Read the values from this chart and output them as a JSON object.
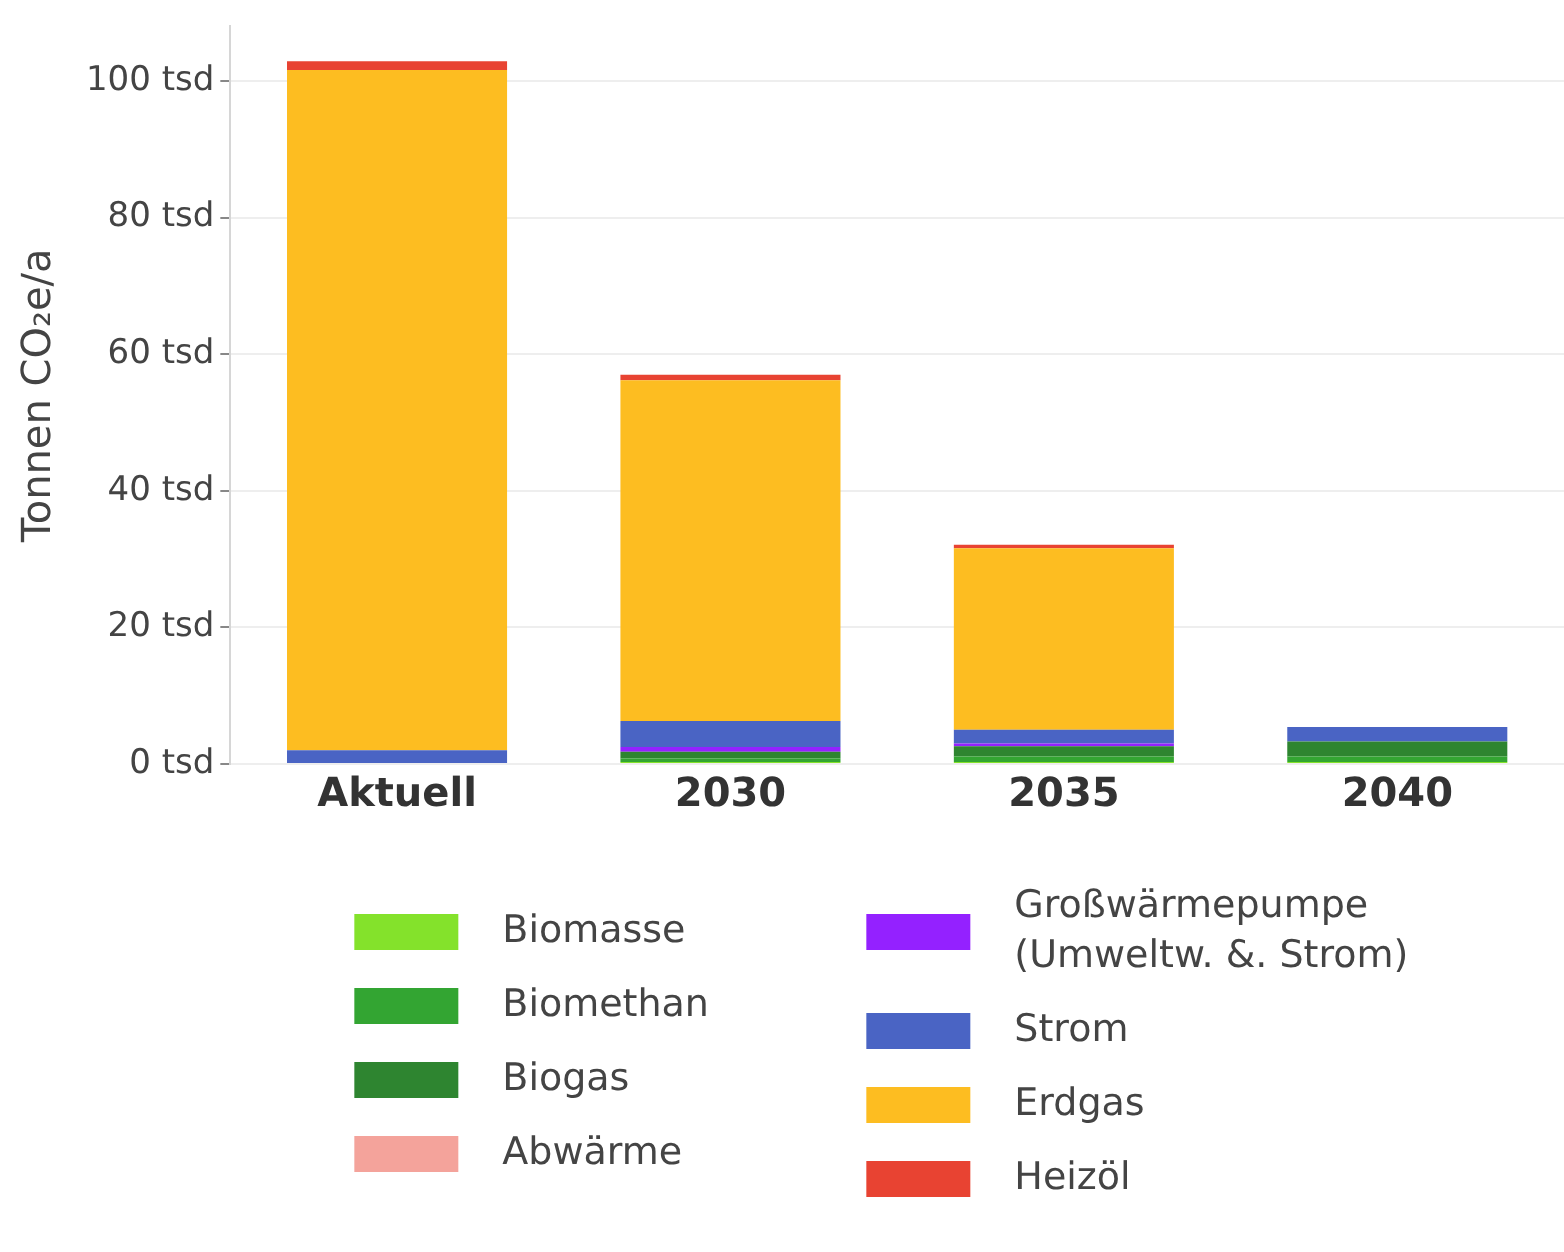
{
  "chart_data": {
    "type": "bar",
    "stacked": true,
    "categories": [
      "Aktuell",
      "2030",
      "2035",
      "2040"
    ],
    "ylabel": "Tonnen CO₂e/a",
    "ylim": [
      0,
      108
    ],
    "yticks": [
      {
        "value": 0,
        "label": "0 tsd"
      },
      {
        "value": 20,
        "label": "20 tsd"
      },
      {
        "value": 40,
        "label": "40 tsd"
      },
      {
        "value": 60,
        "label": "60 tsd"
      },
      {
        "value": 80,
        "label": "80 tsd"
      },
      {
        "value": 100,
        "label": "100 tsd"
      }
    ],
    "grid": "y",
    "legend": "bottom",
    "series": [
      {
        "name": "Biomasse",
        "color": "#84e22b",
        "values": [
          null,
          0.3,
          0.3,
          0.3
        ]
      },
      {
        "name": "Biomethan",
        "color": "#33a532",
        "values": [
          null,
          0.5,
          0.8,
          0.8
        ]
      },
      {
        "name": "Biogas",
        "color": "#2e8530",
        "values": [
          null,
          1.0,
          1.5,
          2.2
        ]
      },
      {
        "name": "Abwärme",
        "color": "#f4a39b",
        "values": [
          null,
          null,
          null,
          null
        ]
      },
      {
        "name": "Großwärmepumpe (Umweltw. &. Strom)",
        "color": "#9421ff",
        "values": [
          null,
          0.7,
          0.4,
          null
        ]
      },
      {
        "name": "Strom",
        "color": "#4a64c4",
        "values": [
          2.0,
          3.8,
          2.0,
          2.1
        ]
      },
      {
        "name": "Erdgas",
        "color": "#fdbd21",
        "values": [
          99.6,
          49.9,
          26.6,
          null
        ]
      },
      {
        "name": "Heizöl",
        "color": "#e84332",
        "values": [
          1.3,
          0.8,
          0.5,
          null
        ]
      }
    ]
  }
}
